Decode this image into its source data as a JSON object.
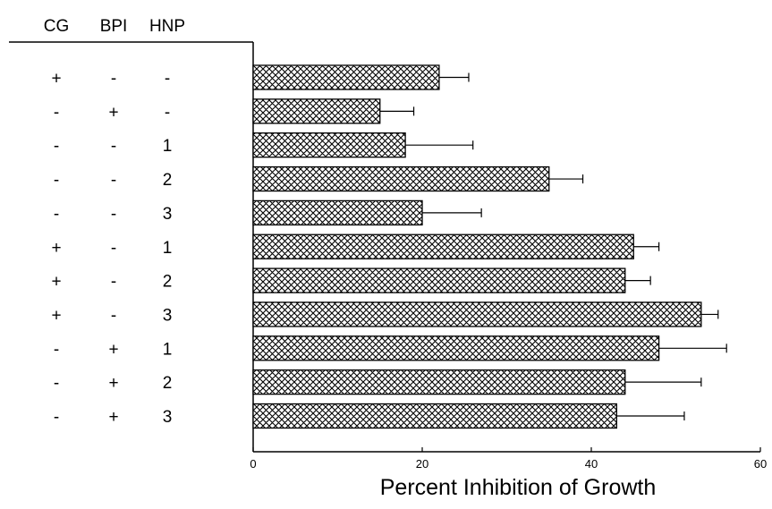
{
  "chart_data": {
    "type": "bar",
    "orientation": "horizontal",
    "title": "",
    "xlabel": "Percent Inhibition of Growth",
    "ylabel": "",
    "xlim": [
      0,
      60
    ],
    "xticks": [
      "0",
      "20",
      "40",
      "60"
    ],
    "grid": false,
    "fill_pattern": "crosshatch",
    "table_columns": [
      "CG",
      "BPI",
      "HNP"
    ],
    "rows": [
      {
        "CG": "+",
        "BPI": "-",
        "HNP": "-",
        "value": 22,
        "error": 3.5
      },
      {
        "CG": "-",
        "BPI": "+",
        "HNP": "-",
        "value": 15,
        "error": 4
      },
      {
        "CG": "-",
        "BPI": "-",
        "HNP": "1",
        "value": 18,
        "error": 8
      },
      {
        "CG": "-",
        "BPI": "-",
        "HNP": "2",
        "value": 35,
        "error": 4
      },
      {
        "CG": "-",
        "BPI": "-",
        "HNP": "3",
        "value": 20,
        "error": 7
      },
      {
        "CG": "+",
        "BPI": "-",
        "HNP": "1",
        "value": 45,
        "error": 3
      },
      {
        "CG": "+",
        "BPI": "-",
        "HNP": "2",
        "value": 44,
        "error": 3
      },
      {
        "CG": "+",
        "BPI": "-",
        "HNP": "3",
        "value": 53,
        "error": 2
      },
      {
        "CG": "-",
        "BPI": "+",
        "HNP": "1",
        "value": 48,
        "error": 8
      },
      {
        "CG": "-",
        "BPI": "+",
        "HNP": "2",
        "value": 44,
        "error": 9
      },
      {
        "CG": "-",
        "BPI": "+",
        "HNP": "3",
        "value": 43,
        "error": 8
      }
    ]
  }
}
